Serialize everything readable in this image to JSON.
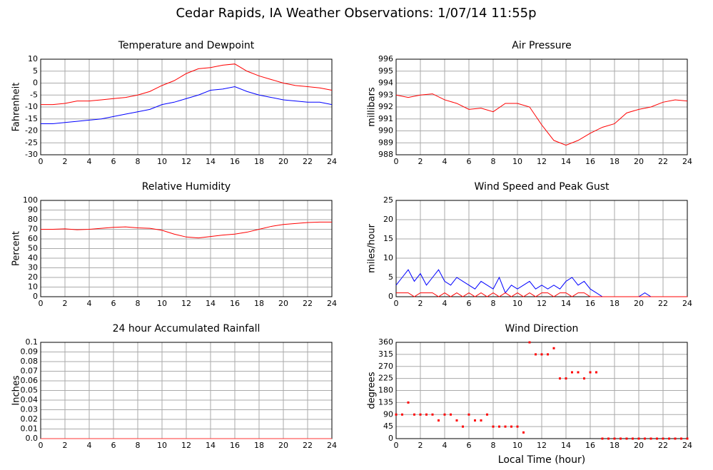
{
  "title": "Cedar Rapids, IA Weather Observations: 1/07/14 11:55p",
  "chart_data": [
    {
      "type": "line",
      "title": "Temperature and Dewpoint",
      "ylabel": "Fahrenheit",
      "x": [
        0,
        1,
        2,
        3,
        4,
        5,
        6,
        7,
        8,
        9,
        10,
        11,
        12,
        13,
        14,
        15,
        16,
        17,
        18,
        19,
        20,
        21,
        22,
        23,
        24
      ],
      "series": [
        {
          "name": "Temperature",
          "color": "#ff0000",
          "values": [
            -9,
            -9,
            -8.5,
            -7.5,
            -7.5,
            -7,
            -6.5,
            -6,
            -5,
            -3.5,
            -1,
            1,
            4,
            6,
            6.5,
            7.5,
            8,
            5,
            3,
            1.5,
            0,
            -1,
            -1.5,
            -2,
            -3
          ]
        },
        {
          "name": "Dewpoint",
          "color": "#0000ff",
          "values": [
            -17,
            -17,
            -16.5,
            -16,
            -15.5,
            -15,
            -14,
            -13,
            -12,
            -11,
            -9,
            -8,
            -6.5,
            -5,
            -3,
            -2.5,
            -1.5,
            -3.5,
            -5,
            -6,
            -7,
            -7.5,
            -8,
            -8,
            -9
          ]
        }
      ],
      "xlim": [
        0,
        24
      ],
      "xticks": [
        0,
        2,
        4,
        6,
        8,
        10,
        12,
        14,
        16,
        18,
        20,
        22,
        24
      ],
      "ylim": [
        -30,
        10
      ],
      "yticks": [
        -30,
        -25,
        -20,
        -15,
        -10,
        -5,
        0,
        5,
        10
      ],
      "grid": true
    },
    {
      "type": "line",
      "title": "Air Pressure",
      "ylabel": "millibars",
      "x": [
        0,
        1,
        2,
        3,
        4,
        5,
        6,
        7,
        8,
        9,
        10,
        11,
        12,
        13,
        14,
        15,
        16,
        17,
        18,
        19,
        20,
        21,
        22,
        23,
        24
      ],
      "series": [
        {
          "name": "Pressure",
          "color": "#ff0000",
          "values": [
            993,
            992.8,
            993,
            993.1,
            992.6,
            992.3,
            991.8,
            991.9,
            991.6,
            992.3,
            992.3,
            992,
            990.5,
            989.2,
            988.8,
            989.2,
            989.8,
            990.3,
            990.6,
            991.5,
            991.8,
            992,
            992.4,
            992.6,
            992.5
          ]
        }
      ],
      "xlim": [
        0,
        24
      ],
      "xticks": [
        0,
        2,
        4,
        6,
        8,
        10,
        12,
        14,
        16,
        18,
        20,
        22,
        24
      ],
      "ylim": [
        988,
        996
      ],
      "yticks": [
        988,
        989,
        990,
        991,
        992,
        993,
        994,
        995,
        996
      ],
      "grid": true
    },
    {
      "type": "line",
      "title": "Relative Humidity",
      "ylabel": "Percent",
      "x": [
        0,
        1,
        2,
        3,
        4,
        5,
        6,
        7,
        8,
        9,
        10,
        11,
        12,
        13,
        14,
        15,
        16,
        17,
        18,
        19,
        20,
        21,
        22,
        23,
        24
      ],
      "series": [
        {
          "name": "Humidity",
          "color": "#ff0000",
          "values": [
            70,
            70,
            70.5,
            69.5,
            70,
            71,
            72,
            72.5,
            71.5,
            71,
            69,
            65,
            62,
            61,
            62.5,
            64,
            65,
            67,
            70,
            73,
            75,
            76,
            77,
            77.5,
            77.5
          ]
        }
      ],
      "xlim": [
        0,
        24
      ],
      "xticks": [
        0,
        2,
        4,
        6,
        8,
        10,
        12,
        14,
        16,
        18,
        20,
        22,
        24
      ],
      "ylim": [
        0,
        100
      ],
      "yticks": [
        0,
        10,
        20,
        30,
        40,
        50,
        60,
        70,
        80,
        90,
        100
      ],
      "grid": true
    },
    {
      "type": "line",
      "title": "Wind Speed and Peak Gust",
      "ylabel": "miles/hour",
      "x": [
        0,
        0.5,
        1,
        1.5,
        2,
        2.5,
        3,
        3.5,
        4,
        4.5,
        5,
        5.5,
        6,
        6.5,
        7,
        7.5,
        8,
        8.5,
        9,
        9.5,
        10,
        10.5,
        11,
        11.5,
        12,
        12.5,
        13,
        13.5,
        14,
        14.5,
        15,
        15.5,
        16,
        16.5,
        17,
        17.5,
        18,
        18.5,
        19,
        19.5,
        20,
        20.5,
        21,
        21.5,
        22,
        22.5,
        23,
        23.5,
        24
      ],
      "series": [
        {
          "name": "Wind Speed",
          "color": "#0000ff",
          "values": [
            3,
            5,
            7,
            4,
            6,
            3,
            5,
            7,
            4,
            3,
            5,
            4,
            3,
            2,
            4,
            3,
            2,
            5,
            1,
            3,
            2,
            3,
            4,
            2,
            3,
            2,
            3,
            2,
            4,
            5,
            3,
            4,
            2,
            1,
            0,
            0,
            0,
            0,
            0,
            0,
            0,
            1,
            0,
            0,
            0,
            0,
            0,
            0,
            0
          ]
        },
        {
          "name": "Peak Gust",
          "color": "#ff0000",
          "values": [
            1,
            1,
            1,
            0,
            1,
            1,
            1,
            0,
            1,
            0,
            1,
            0,
            1,
            0,
            1,
            0,
            1,
            0,
            1,
            0,
            1,
            0,
            1,
            0,
            1,
            1,
            0,
            1,
            1,
            0,
            1,
            1,
            0,
            0,
            0,
            0,
            0,
            0,
            0,
            0,
            0,
            0,
            0,
            0,
            0,
            0,
            0,
            0,
            0
          ]
        }
      ],
      "xlim": [
        0,
        24
      ],
      "xticks": [
        0,
        2,
        4,
        6,
        8,
        10,
        12,
        14,
        16,
        18,
        20,
        22,
        24
      ],
      "ylim": [
        0,
        25
      ],
      "yticks": [
        0,
        5,
        10,
        15,
        20,
        25
      ],
      "grid": true
    },
    {
      "type": "line",
      "title": "24 hour Accumulated Rainfall",
      "ylabel": "Inches",
      "x": [
        0,
        24
      ],
      "series": [
        {
          "name": "Rainfall",
          "color": "#ff3333",
          "values": [
            0,
            0
          ]
        }
      ],
      "xlim": [
        0,
        24
      ],
      "xticks": [
        0,
        2,
        4,
        6,
        8,
        10,
        12,
        14,
        16,
        18,
        20,
        22,
        24
      ],
      "ylim": [
        0,
        0.1
      ],
      "yticks": [
        {
          "value": 0,
          "label": "0.0"
        },
        0.01,
        0.02,
        0.03,
        0.04,
        0.05,
        0.06,
        0.07,
        0.08,
        0.09,
        0.1
      ],
      "grid": true
    },
    {
      "type": "scatter",
      "title": "Wind Direction",
      "ylabel": "degrees",
      "xlabel": "Local Time (hour)",
      "x": [
        0,
        0.5,
        1,
        1.5,
        2,
        2.5,
        3,
        3.5,
        4,
        4.5,
        5,
        5.5,
        6,
        6.5,
        7,
        7.5,
        8,
        8.5,
        9,
        9.5,
        10,
        10.5,
        11,
        11.5,
        12,
        12.5,
        13,
        13.5,
        14,
        14.5,
        15,
        15.5,
        16,
        16.5,
        17,
        17.5,
        18,
        18.5,
        19,
        19.5,
        20,
        20.5,
        21,
        21.5,
        22,
        22.5,
        23,
        23.5,
        24
      ],
      "series": [
        {
          "name": "Direction",
          "color": "#ff0000",
          "values": [
            90,
            90,
            135,
            90,
            90,
            90,
            90,
            68,
            90,
            90,
            68,
            45,
            90,
            68,
            68,
            90,
            45,
            45,
            45,
            45,
            45,
            23,
            360,
            315,
            315,
            315,
            338,
            225,
            225,
            248,
            248,
            225,
            248,
            248,
            0,
            0,
            0,
            0,
            0,
            0,
            0,
            0,
            0,
            0,
            0,
            0,
            0,
            0,
            0
          ]
        }
      ],
      "xlim": [
        0,
        24
      ],
      "xticks": [
        0,
        2,
        4,
        6,
        8,
        10,
        12,
        14,
        16,
        18,
        20,
        22,
        24
      ],
      "ylim": [
        0,
        360
      ],
      "yticks": [
        0,
        45,
        90,
        135,
        180,
        225,
        270,
        315,
        360
      ],
      "grid": true
    }
  ]
}
